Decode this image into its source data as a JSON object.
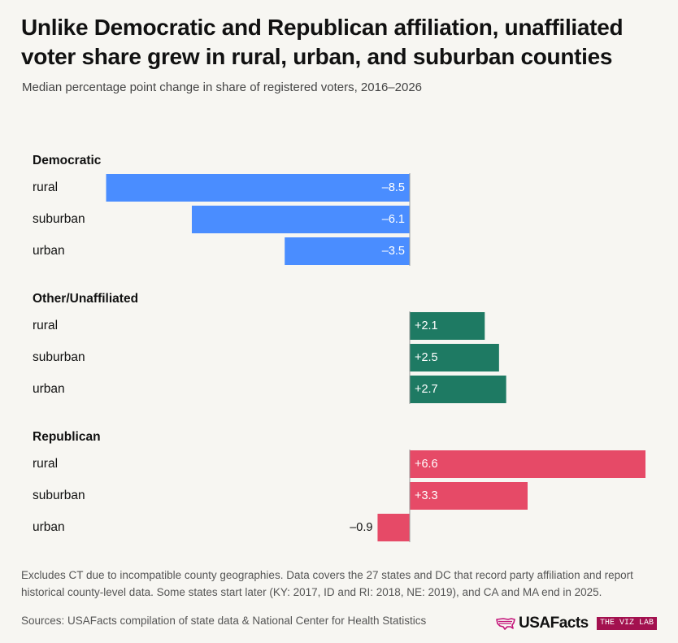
{
  "chart_data": {
    "type": "bar",
    "orientation": "horizontal",
    "title": "Unlike Democratic and Republican affiliation, unaffiliated voter share grew in rural, urban, and suburban counties",
    "subtitle": "Median percentage point change in share of registered voters, 2016–2026",
    "groups": [
      {
        "name": "Democratic",
        "color": "#4a8dff",
        "categories": [
          "rural",
          "suburban",
          "urban"
        ],
        "values": [
          -8.5,
          -6.1,
          -3.5
        ],
        "labels": [
          "–8.5",
          "–6.1",
          "–3.5"
        ]
      },
      {
        "name": "Other/Unaffiliated",
        "color": "#1e7a63",
        "categories": [
          "rural",
          "suburban",
          "urban"
        ],
        "values": [
          2.1,
          2.5,
          2.7
        ],
        "labels": [
          "+2.1",
          "+2.5",
          "+2.7"
        ]
      },
      {
        "name": "Republican",
        "color": "#e64a67",
        "categories": [
          "rural",
          "suburban",
          "urban"
        ],
        "values": [
          6.6,
          3.3,
          -0.9
        ],
        "labels": [
          "+6.6",
          "+3.3",
          "–0.9"
        ]
      }
    ],
    "xlim": [
      -8.5,
      6.6
    ],
    "grid": false
  },
  "footer": {
    "note": "Excludes CT due to incompatible county geographies. Data covers the 27 states and DC that record party affiliation and report historical county-level data. Some states start later (KY: 2017, ID and RI: 2018, NE: 2019), and CA and MA end in 2025.",
    "sources": "Sources: USAFacts compilation of state data & National Center for Health Statistics",
    "logo_text": "USAFacts",
    "logo_icon": "us-map-icon",
    "badge": "THE VIZ LAB"
  },
  "colors": {
    "background": "#f7f6f2",
    "logo_icon": "#c4157a",
    "badge_bg": "#a3114f"
  }
}
